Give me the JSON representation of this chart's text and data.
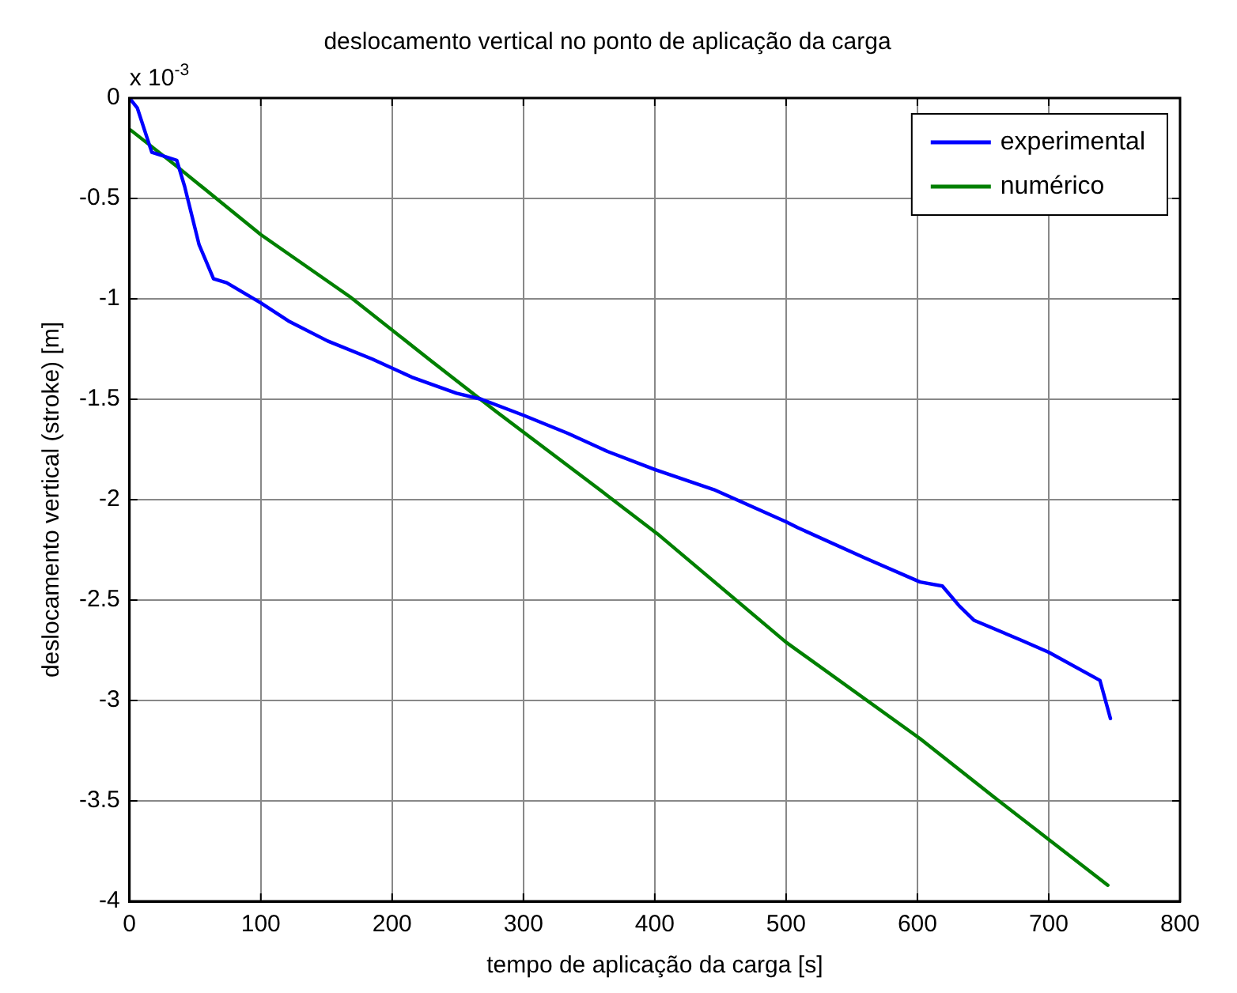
{
  "chart_data": {
    "type": "line",
    "title": "deslocamento vertical no ponto de aplicação da carga",
    "xlabel": "tempo de aplicação da carga [s]",
    "ylabel": "deslocamento vertical (stroke) [m]",
    "annotations": [
      "x 10$^{-3}$"
    ],
    "xlim": [
      0,
      800
    ],
    "xticks": [
      0,
      100,
      200,
      300,
      400,
      500,
      600,
      700,
      800
    ],
    "ylim": [
      -4,
      0
    ],
    "yticks": [
      -4,
      -3.5,
      -3,
      -2.5,
      -2,
      -1.5,
      -1,
      -0.5,
      0
    ],
    "grid": true,
    "legend": "top right",
    "line_style": "solid",
    "marker": "none",
    "series": [
      {
        "name": "experimental",
        "color": "#0000ff",
        "x": [
          0,
          6,
          17,
          36,
          42,
          53,
          64,
          74,
          100,
          121,
          151,
          185,
          215,
          249,
          268,
          300,
          334,
          364,
          400,
          445,
          500,
          509,
          560,
          602,
          619,
          632,
          643,
          679,
          700,
          739,
          747
        ],
        "values": [
          0,
          -0.05,
          -0.27,
          -0.31,
          -0.44,
          -0.73,
          -0.9,
          -0.92,
          -1.02,
          -1.11,
          -1.21,
          -1.3,
          -1.39,
          -1.47,
          -1.5,
          -1.58,
          -1.67,
          -1.76,
          -1.85,
          -1.95,
          -2.11,
          -2.14,
          -2.29,
          -2.41,
          -2.43,
          -2.53,
          -2.6,
          -2.7,
          -2.76,
          -2.9,
          -3.09
        ]
      },
      {
        "name": "numérico",
        "color": "#008000",
        "x": [
          1,
          36,
          100,
          168,
          228,
          279,
          364,
          402,
          500,
          602,
          662,
          745
        ],
        "values": [
          -0.16,
          -0.34,
          -0.68,
          -0.99,
          -1.3,
          -1.56,
          -1.98,
          -2.17,
          -2.71,
          -3.19,
          -3.5,
          -3.92
        ]
      }
    ]
  }
}
